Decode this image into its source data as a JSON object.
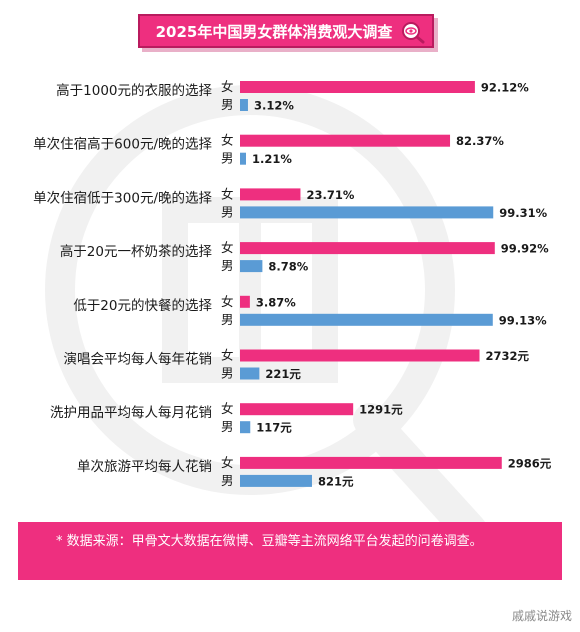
{
  "title": "2025年中国男女群体消费观大调查",
  "footnote": "* 数据来源：甲骨文大数据在微博、豆瓣等主流网络平台发起的问卷调查。",
  "corner_watermark": "戚戚说游戏",
  "colors": {
    "female": "#ee2f7f",
    "male": "#5a9bd5",
    "accent": "#ee2f7f"
  },
  "chart_data": {
    "type": "bar",
    "orientation": "horizontal",
    "title": "2025年中国男女群体消费观大调查",
    "series_labels": [
      "女",
      "男"
    ],
    "groups": [
      {
        "category": "高于1000元的衣服的选择",
        "female": 92.12,
        "male": 3.12,
        "female_label": "92.12%",
        "male_label": "3.12%",
        "unit": "%"
      },
      {
        "category": "单次住宿高于600元/晚的选择",
        "female": 82.37,
        "male": 1.21,
        "female_label": "82.37%",
        "male_label": "1.21%",
        "unit": "%"
      },
      {
        "category": "单次住宿低于300元/晚的选择",
        "female": 23.71,
        "male": 99.31,
        "female_label": "23.71%",
        "male_label": "99.31%",
        "unit": "%"
      },
      {
        "category": "高于20元一杯奶茶的选择",
        "female": 99.92,
        "male": 8.78,
        "female_label": "99.92%",
        "male_label": "8.78%",
        "unit": "%"
      },
      {
        "category": "低于20元的快餐的选择",
        "female": 3.87,
        "male": 99.13,
        "female_label": "3.87%",
        "male_label": "99.13%",
        "unit": "%"
      },
      {
        "category": "演唱会平均每人每年花销",
        "female": 2732,
        "male": 221,
        "female_label": "2732元",
        "male_label": "221元",
        "unit": "元"
      },
      {
        "category": "洗护用品平均每人每月花销",
        "female": 1291,
        "male": 117,
        "female_label": "1291元",
        "male_label": "117元",
        "unit": "元"
      },
      {
        "category": "单次旅游平均每人花销",
        "female": 2986,
        "male": 821,
        "female_label": "2986元",
        "male_label": "821元",
        "unit": "元"
      }
    ]
  }
}
